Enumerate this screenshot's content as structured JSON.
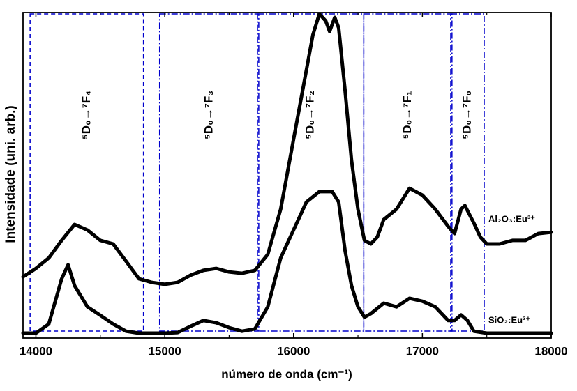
{
  "chart_data": {
    "type": "line",
    "xlabel": "número de onda (cm⁻¹)",
    "ylabel": "Intensidade (uni. arb.)",
    "xlim": [
      13900,
      18000
    ],
    "ylim": [
      0,
      100
    ],
    "xticks": [
      14000,
      15000,
      16000,
      17000,
      18000
    ],
    "xminorticks": [
      14500,
      15500,
      16500,
      17500
    ],
    "series": [
      {
        "name": "Al₂O₃:Eu³⁺",
        "color": "#000000",
        "x": [
          13900,
          14000,
          14100,
          14200,
          14300,
          14400,
          14500,
          14600,
          14700,
          14800,
          14900,
          15000,
          15100,
          15200,
          15300,
          15400,
          15500,
          15600,
          15700,
          15800,
          15900,
          16000,
          16100,
          16150,
          16200,
          16250,
          16280,
          16320,
          16350,
          16400,
          16450,
          16500,
          16550,
          16600,
          16650,
          16700,
          16800,
          16900,
          17000,
          17100,
          17200,
          17250,
          17300,
          17330,
          17400,
          17450,
          17500,
          17600,
          17700,
          17800,
          17900,
          18000
        ],
        "values": [
          18.8,
          21.4,
          24.6,
          30.0,
          34.9,
          33.2,
          30.0,
          28.9,
          23.6,
          18.2,
          17.1,
          16.5,
          17.1,
          19.3,
          20.8,
          21.4,
          20.3,
          19.9,
          20.8,
          25.7,
          39.6,
          61.0,
          82.4,
          93.1,
          99.6,
          97.4,
          94.2,
          98.5,
          95.3,
          76.0,
          54.6,
          39.6,
          30.0,
          28.9,
          31.0,
          36.4,
          39.6,
          46.0,
          43.9,
          39.6,
          34.3,
          32.1,
          39.6,
          40.7,
          35.3,
          31.0,
          28.9,
          28.9,
          30.0,
          30.0,
          32.1,
          32.5
        ]
      },
      {
        "name": "SiO₂:Eu³⁺",
        "color": "#000000",
        "x": [
          13900,
          14000,
          14100,
          14200,
          14250,
          14300,
          14400,
          14500,
          14600,
          14700,
          14800,
          15000,
          15100,
          15200,
          15300,
          15400,
          15500,
          15600,
          15700,
          15800,
          15900,
          16000,
          16100,
          16200,
          16300,
          16350,
          16400,
          16450,
          16500,
          16550,
          16600,
          16700,
          16800,
          16900,
          17000,
          17100,
          17200,
          17250,
          17300,
          17350,
          17400,
          17500,
          18000
        ],
        "values": [
          1.5,
          1.5,
          4.3,
          18.2,
          22.5,
          16.1,
          9.6,
          7.0,
          4.3,
          2.1,
          1.5,
          1.5,
          1.7,
          3.6,
          5.4,
          4.7,
          3.2,
          2.1,
          2.8,
          9.6,
          24.6,
          33.2,
          41.8,
          45.0,
          45.0,
          41.8,
          26.8,
          16.1,
          9.6,
          6.4,
          7.5,
          10.7,
          9.6,
          12.2,
          11.3,
          9.6,
          5.4,
          5.4,
          7.1,
          5.4,
          2.1,
          1.5,
          1.5
        ]
      }
    ],
    "regions": [
      {
        "label": "⁵D₀→⁷F₄",
        "x0": 13955,
        "x1": 14835,
        "style": "dashed",
        "color": "#0000cc"
      },
      {
        "label": "⁵D₀→⁷F₃",
        "x0": 14960,
        "x1": 15730,
        "style": "dashdot",
        "color": "#0000cc"
      },
      {
        "label": "⁵D₀→⁷F₂",
        "x0": 15720,
        "x1": 16545,
        "style": "dashdot",
        "color": "#0000cc"
      },
      {
        "label": "⁵D₀→⁷F₁",
        "x0": 16545,
        "x1": 17230,
        "style": "dashdot",
        "color": "#0000cc"
      },
      {
        "label": "⁵D₀→⁷F₀",
        "x0": 17220,
        "x1": 17480,
        "style": "dashdot",
        "color": "#0000cc"
      }
    ]
  }
}
